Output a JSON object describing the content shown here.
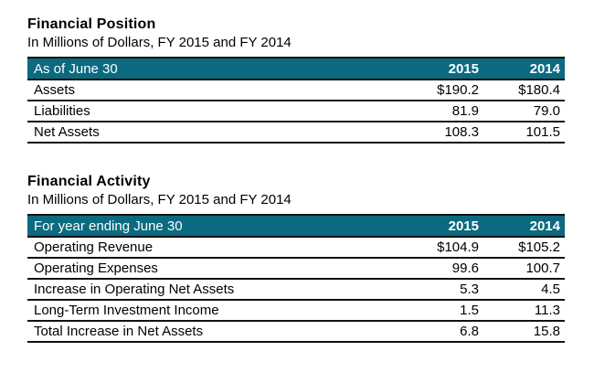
{
  "colors": {
    "header_background": "#0b6a80",
    "header_text": "#ffffff",
    "row_border": "#111111",
    "body_text": "#000000",
    "page_background": "#ffffff"
  },
  "tables": [
    {
      "title": "Financial Position",
      "subtitle": "In Millions of Dollars, FY 2015 and FY 2014",
      "header": {
        "label": "As of June 30",
        "col1": "2015",
        "col2": "2014"
      },
      "rows": [
        {
          "label": "Assets",
          "col1": "$190.2",
          "col2": "$180.4"
        },
        {
          "label": "Liabilities",
          "col1": "81.9",
          "col2": "79.0"
        },
        {
          "label": "Net Assets",
          "col1": "108.3",
          "col2": "101.5"
        }
      ]
    },
    {
      "title": "Financial Activity",
      "subtitle": "In Millions of Dollars, FY 2015 and FY 2014",
      "header": {
        "label": "For year ending June 30",
        "col1": "2015",
        "col2": "2014"
      },
      "rows": [
        {
          "label": "Operating Revenue",
          "col1": "$104.9",
          "col2": "$105.2"
        },
        {
          "label": "Operating Expenses",
          "col1": "99.6",
          "col2": "100.7"
        },
        {
          "label": "Increase in Operating Net Assets",
          "col1": "5.3",
          "col2": "4.5"
        },
        {
          "label": "Long-Term Investment Income",
          "col1": "1.5",
          "col2": "11.3"
        },
        {
          "label": "Total Increase in Net Assets",
          "col1": "6.8",
          "col2": "15.8"
        }
      ]
    }
  ]
}
